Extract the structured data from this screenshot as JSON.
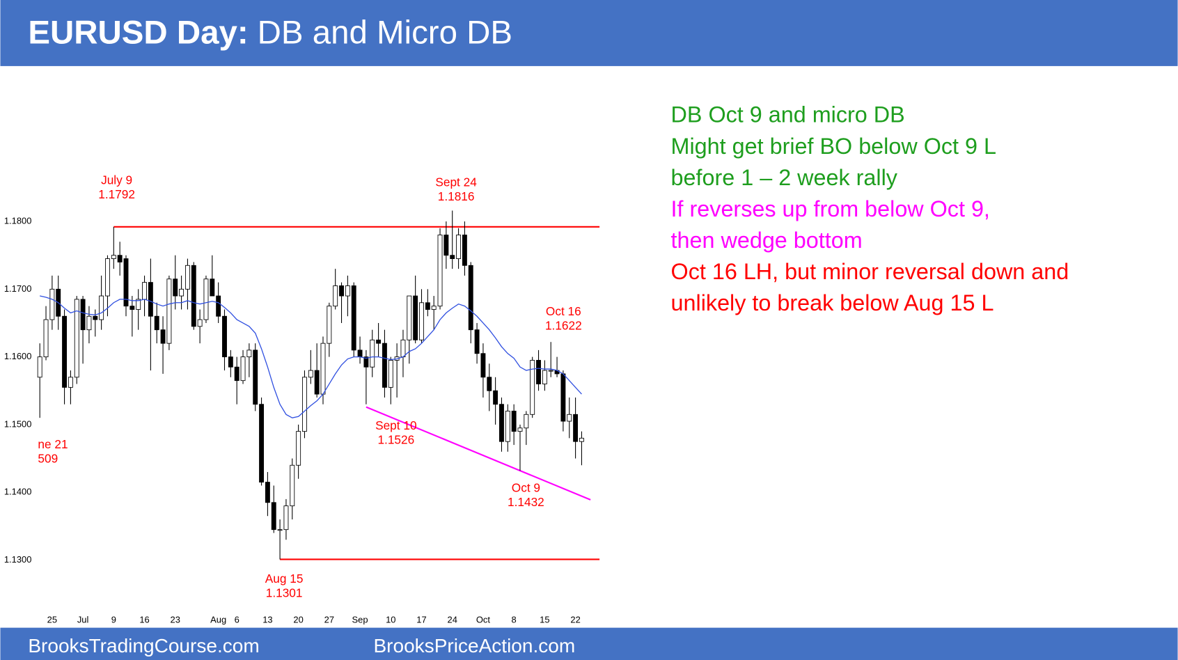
{
  "header": {
    "title_bold": "EURUSD Day:",
    "title": "DB and Micro DB",
    "color": "#4472c4"
  },
  "footer": {
    "left": "BrooksTradingCourse.com",
    "right": "BrooksPriceAction.com"
  },
  "notes": [
    {
      "text": "DB Oct 9 and micro DB",
      "color": "#1e9e1e"
    },
    {
      "text": "Might get brief BO below Oct 9 L",
      "color": "#1e9e1e"
    },
    {
      "text": "before 1 – 2 week rally",
      "color": "#1e9e1e"
    },
    {
      "text": "If reverses up from below Oct 9,",
      "color": "#ff00ff"
    },
    {
      "text": "then wedge bottom",
      "color": "#ff00ff"
    },
    {
      "text": "Oct 16 LH, but minor reversal down and",
      "color": "#ff0000"
    },
    {
      "text": "unlikely to break below Aug 15 L",
      "color": "#ff0000"
    }
  ],
  "chart_data": {
    "type": "candlestick",
    "ylim": [
      1.125,
      1.2
    ],
    "yticks": [
      {
        "value": 1.13,
        "label": "1.1300"
      },
      {
        "value": 1.14,
        "label": "1.1400"
      },
      {
        "value": 1.15,
        "label": "1.1500"
      },
      {
        "value": 1.16,
        "label": "1.1600"
      },
      {
        "value": 1.17,
        "label": "1.1700"
      },
      {
        "value": 1.18,
        "label": "1.1800"
      }
    ],
    "categories": [
      null,
      null,
      "25",
      null,
      null,
      null,
      null,
      "Jul",
      null,
      null,
      null,
      null,
      "9",
      null,
      null,
      null,
      null,
      "16",
      null,
      null,
      null,
      null,
      "23",
      null,
      null,
      null,
      null,
      null,
      null,
      "Aug",
      null,
      null,
      "6",
      null,
      null,
      null,
      null,
      "13",
      null,
      null,
      null,
      null,
      "20",
      null,
      null,
      null,
      null,
      "27",
      null,
      null,
      null,
      null,
      "Sep",
      null,
      null,
      null,
      null,
      "10",
      null,
      null,
      null,
      null,
      "17",
      null,
      null,
      null,
      null,
      "24",
      null,
      null,
      null,
      null,
      "Oct",
      null,
      null,
      null,
      null,
      "8",
      null,
      null,
      null,
      null,
      "15",
      null,
      null,
      null,
      null,
      "22",
      null
    ],
    "open": [
      1.157,
      1.16,
      1.1655,
      1.17,
      1.166,
      1.1555,
      1.157,
      1.1685,
      1.164,
      1.166,
      1.1655,
      1.169,
      1.1745,
      1.175,
      1.1745,
      1.1675,
      1.167,
      1.1685,
      1.171,
      1.166,
      1.164,
      1.162,
      1.1715,
      1.169,
      1.17,
      1.1735,
      1.1645,
      1.1655,
      1.1715,
      1.169,
      1.166,
      1.16,
      1.1585,
      1.1565,
      1.16,
      1.161,
      1.153,
      1.1415,
      1.1385,
      1.1345,
      1.1345,
      1.138,
      1.144,
      1.149,
      1.157,
      1.158,
      1.1545,
      1.162,
      1.1675,
      1.1705,
      1.169,
      1.1705,
      1.161,
      1.16,
      1.1585,
      1.1625,
      1.162,
      1.1555,
      1.1595,
      1.16,
      1.1625,
      1.169,
      1.1625,
      1.168,
      1.167,
      1.1675,
      1.178,
      1.175,
      1.1745,
      1.178,
      1.1735,
      1.164,
      1.1605,
      1.157,
      1.155,
      1.153,
      1.1475,
      1.152,
      1.149,
      1.1495,
      1.1515,
      1.1595,
      1.156,
      1.158,
      1.158,
      1.1575,
      1.1505,
      1.1515,
      1.1475
    ],
    "high": [
      1.162,
      1.1675,
      1.172,
      1.172,
      1.167,
      1.158,
      1.169,
      1.169,
      1.1675,
      1.167,
      1.172,
      1.175,
      1.1792,
      1.177,
      1.175,
      1.169,
      1.17,
      1.172,
      1.1745,
      1.168,
      1.166,
      1.172,
      1.175,
      1.172,
      1.1745,
      1.174,
      1.167,
      1.172,
      1.175,
      1.171,
      1.167,
      1.161,
      1.16,
      1.161,
      1.162,
      1.162,
      1.154,
      1.143,
      1.141,
      1.136,
      1.139,
      1.145,
      1.15,
      1.158,
      1.161,
      1.162,
      1.163,
      1.168,
      1.173,
      1.171,
      1.172,
      1.171,
      1.163,
      1.161,
      1.164,
      1.165,
      1.164,
      1.16,
      1.162,
      1.164,
      1.169,
      1.172,
      1.17,
      1.17,
      1.169,
      1.179,
      1.18,
      1.1816,
      1.179,
      1.18,
      1.174,
      1.165,
      1.162,
      1.159,
      1.157,
      1.154,
      1.153,
      1.153,
      1.15,
      1.152,
      1.16,
      1.161,
      1.1595,
      1.1622,
      1.16,
      1.158,
      1.154,
      1.154,
      1.149
    ],
    "low": [
      1.151,
      1.1595,
      1.164,
      1.164,
      1.153,
      1.153,
      1.156,
      1.159,
      1.162,
      1.163,
      1.164,
      1.166,
      1.173,
      1.172,
      1.166,
      1.163,
      1.164,
      1.166,
      1.158,
      1.162,
      1.1575,
      1.161,
      1.167,
      1.167,
      1.167,
      1.164,
      1.162,
      1.165,
      1.169,
      1.165,
      1.158,
      1.157,
      1.153,
      1.156,
      1.157,
      1.152,
      1.141,
      1.1365,
      1.134,
      1.1301,
      1.133,
      1.136,
      1.142,
      1.148,
      1.156,
      1.154,
      1.153,
      1.16,
      1.167,
      1.165,
      1.166,
      1.16,
      1.159,
      1.153,
      1.157,
      1.16,
      1.154,
      1.153,
      1.154,
      1.157,
      1.159,
      1.162,
      1.162,
      1.166,
      1.164,
      1.167,
      1.173,
      1.173,
      1.173,
      1.172,
      1.162,
      1.159,
      1.154,
      1.152,
      1.15,
      1.146,
      1.146,
      1.147,
      1.1432,
      1.147,
      1.151,
      1.155,
      1.155,
      1.157,
      1.157,
      1.149,
      1.148,
      1.145,
      1.144
    ],
    "close": [
      1.16,
      1.1655,
      1.17,
      1.166,
      1.1555,
      1.157,
      1.1685,
      1.164,
      1.166,
      1.1655,
      1.169,
      1.1745,
      1.175,
      1.174,
      1.1675,
      1.167,
      1.1685,
      1.171,
      1.166,
      1.164,
      1.162,
      1.1715,
      1.169,
      1.17,
      1.1735,
      1.1645,
      1.1655,
      1.1715,
      1.169,
      1.166,
      1.16,
      1.1585,
      1.1565,
      1.16,
      1.161,
      1.153,
      1.1415,
      1.1385,
      1.1345,
      1.1345,
      1.138,
      1.144,
      1.149,
      1.157,
      1.158,
      1.1545,
      1.162,
      1.1675,
      1.1705,
      1.169,
      1.1705,
      1.161,
      1.16,
      1.1585,
      1.1625,
      1.162,
      1.1555,
      1.1595,
      1.16,
      1.1625,
      1.169,
      1.1625,
      1.168,
      1.167,
      1.1675,
      1.178,
      1.175,
      1.1745,
      1.178,
      1.1735,
      1.164,
      1.1605,
      1.157,
      1.155,
      1.153,
      1.1475,
      1.152,
      1.149,
      1.1495,
      1.1515,
      1.1595,
      1.156,
      1.158,
      1.158,
      1.1575,
      1.1505,
      1.1515,
      1.1475,
      1.148
    ],
    "up_color": "#ffffff",
    "down_color": "#000000",
    "ma": [
      1.169,
      1.1688,
      1.1685,
      1.168,
      1.1672,
      1.1665,
      1.1668,
      1.1665,
      1.1663,
      1.1662,
      1.1665,
      1.1672,
      1.168,
      1.1685,
      1.1685,
      1.1683,
      1.1683,
      1.1685,
      1.1682,
      1.1678,
      1.1675,
      1.1678,
      1.168,
      1.168,
      1.1683,
      1.168,
      1.1678,
      1.168,
      1.1682,
      1.168,
      1.1673,
      1.1665,
      1.1655,
      1.165,
      1.1645,
      1.1635,
      1.1612,
      1.1585,
      1.1555,
      1.153,
      1.1515,
      1.151,
      1.1512,
      1.152,
      1.1528,
      1.1535,
      1.1545,
      1.156,
      1.1575,
      1.1588,
      1.1597,
      1.16,
      1.16,
      1.1598,
      1.16,
      1.16,
      1.1598,
      1.1596,
      1.1597,
      1.16,
      1.1608,
      1.1612,
      1.162,
      1.163,
      1.164,
      1.1655,
      1.1665,
      1.1672,
      1.1678,
      1.1675,
      1.1668,
      1.166,
      1.165,
      1.164,
      1.1628,
      1.1615,
      1.1605,
      1.1598,
      1.1585,
      1.158,
      1.1582,
      1.1583,
      1.1582,
      1.1582,
      1.158,
      1.1575,
      1.1565,
      1.1555,
      1.1545
    ],
    "ma_color": "#2f4fe0",
    "annotations": [
      {
        "label": "July 9",
        "value": 1.1792
      },
      {
        "label": "Sept 24",
        "value": 1.1816
      },
      {
        "label": "Oct 16",
        "value": 1.1622
      },
      {
        "label": "Sept 10",
        "value": 1.1526
      },
      {
        "label": "Oct 9",
        "value": 1.1432
      },
      {
        "label": "Aug 15",
        "value": 1.1301
      },
      {
        "label": "ne 21",
        "sublabel": "509"
      }
    ],
    "annotation_color": "#ff0000",
    "hline_color": "#ff0000",
    "wedge_color": "#ff00ff"
  }
}
